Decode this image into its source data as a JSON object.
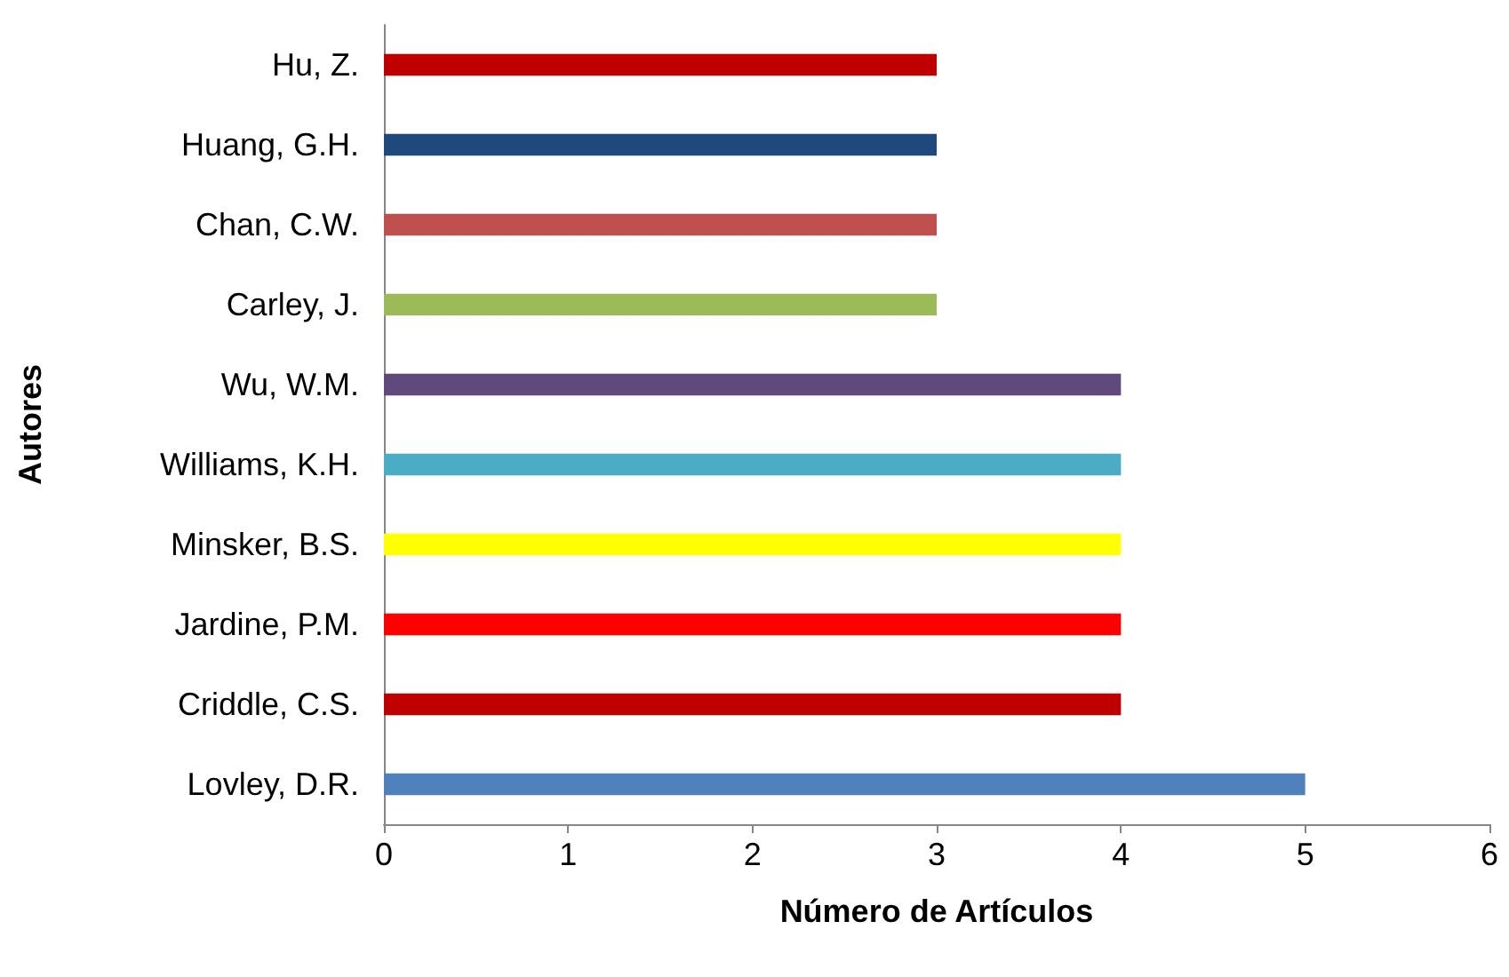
{
  "chart_data": {
    "type": "bar",
    "orientation": "horizontal",
    "xlabel": "Número de Artículos",
    "ylabel": "Autores",
    "categories": [
      "Hu, Z.",
      "Huang, G.H.",
      "Chan, C.W.",
      "Carley, J.",
      "Wu, W.M.",
      "Williams, K.H.",
      "Minsker, B.S.",
      "Jardine, P.M.",
      "Criddle, C.S.",
      "Lovley, D.R."
    ],
    "values": [
      3,
      3,
      3,
      3,
      4,
      4,
      4,
      4,
      4,
      5
    ],
    "colors": [
      "#c00000",
      "#1f497d",
      "#c0504d",
      "#9bbb59",
      "#604a7b",
      "#4bacc6",
      "#ffff00",
      "#ff0000",
      "#c00000",
      "#4f81bd"
    ],
    "xlim": [
      0,
      6
    ],
    "xticks": [
      0,
      1,
      2,
      3,
      4,
      5,
      6
    ],
    "grid": false
  }
}
